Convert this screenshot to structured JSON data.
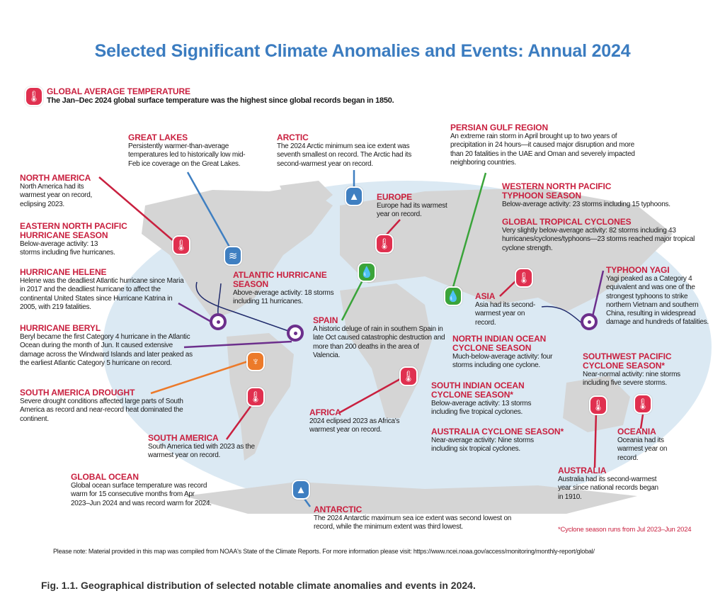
{
  "title": "Selected Significant Climate Anomalies and Events: Annual 2024",
  "colors": {
    "title": "#3b7cc0",
    "heading": "#c9203f",
    "temperature": "#e0304f",
    "ice": "#3f7fc1",
    "precipitation": "#3aa43a",
    "drought": "#ec7a2a",
    "cyclone": "#6c2f8c",
    "ocean": "#dbe9f3",
    "land": "#d5d5d5"
  },
  "icons": [
    "thermometer-icon",
    "ice-icon",
    "rain-icon",
    "cyclone-icon",
    "drought-icon"
  ],
  "events": {
    "global_temp": {
      "h": "GLOBAL AVERAGE TEMPERATURE",
      "t": "The Jan–Dec 2024 global surface temperature was the highest since global records began in 1850."
    },
    "great_lakes": {
      "h": "GREAT LAKES",
      "t": "Persistently warmer-than-average temperatures led to historically low mid-Feb ice coverage on the Great Lakes."
    },
    "arctic": {
      "h": "ARCTIC",
      "t": "The 2024 Arctic minimum sea ice extent was seventh smallest on record. The Arctic had its second-warmest year on record."
    },
    "persian": {
      "h": "PERSIAN GULF REGION",
      "t": "An extreme rain storm in April brought up to two years of precipitation in 24 hours—it caused major disruption and more than 20 fatalities in the UAE and Oman and severely impacted neighboring countries."
    },
    "north_america": {
      "h": "NORTH AMERICA",
      "t": "North America had its warmest year on record, eclipsing 2023."
    },
    "europe": {
      "h": "EUROPE",
      "t": "Europe had its warmest year on record."
    },
    "wnp": {
      "h": "WESTERN NORTH PACIFIC TYPHOON SEASON",
      "t": "Below-average activity: 23 storms including 15 typhoons."
    },
    "enp": {
      "h": "EASTERN NORTH PACIFIC HURRICANE SEASON",
      "t": "Below-average activity: 13 storms including five hurricanes."
    },
    "gtc": {
      "h": "GLOBAL TROPICAL CYCLONES",
      "t": "Very slightly below-average activity: 82 storms including 43 hurricanes/cyclones/typhoons—23 storms reached major tropical cyclone strength."
    },
    "helene": {
      "h": "HURRICANE HELENE",
      "t": "Helene was the deadliest Atlantic hurricane since Maria in 2017 and the deadliest hurricane to affect the continental United States since Hurricane Katrina in 2005, with 219 fatalities."
    },
    "atlantic": {
      "h": "ATLANTIC HURRICANE SEASON",
      "t": "Above-average activity: 18 storms including 11 hurricanes."
    },
    "yagi": {
      "h": "TYPHOON YAGI",
      "t": "Yagi peaked as a Category 4 equivalent and was one of the strongest typhoons to strike northern Vietnam and southern China, resulting in widespread damage and hundreds of fatalities."
    },
    "asia": {
      "h": "ASIA",
      "t": "Asia had its second-warmest year on record."
    },
    "spain": {
      "h": "SPAIN",
      "t": "A historic deluge of rain in southern Spain in late Oct caused catastrophic destruction and more than 200 deaths in the area of Valencia."
    },
    "beryl": {
      "h": "HURRICANE BERYL",
      "t": "Beryl became the first Category 4 hurricane in the Atlantic Ocean during the month of Jun. It caused extensive damage across the Windward Islands and later peaked as the earliest Atlantic Category 5 hurricane on record."
    },
    "nio": {
      "h": "NORTH INDIAN OCEAN CYCLONE SEASON",
      "t": "Much-below-average activity: four storms including one cyclone."
    },
    "swp": {
      "h": "SOUTHWEST PACIFIC CYCLONE SEASON*",
      "t": "Near-normal activity: nine storms including five severe storms."
    },
    "sa_drought": {
      "h": "SOUTH AMERICA DROUGHT",
      "t": "Severe drought conditions affected large parts of South America as record and near-record heat dominated the continent."
    },
    "sio": {
      "h": "SOUTH INDIAN OCEAN CYCLONE SEASON*",
      "t": "Below-average activity: 13 storms including five tropical cyclones."
    },
    "africa": {
      "h": "AFRICA",
      "t": "2024 eclipsed 2023 as Africa's warmest year on record."
    },
    "south_america": {
      "h": "SOUTH AMERICA",
      "t": "South America tied with 2023 as the warmest year on record."
    },
    "aus_cyc": {
      "h": "AUSTRALIA CYCLONE SEASON*",
      "t": "Near-average activity: Nine storms including six tropical cyclones."
    },
    "oceania": {
      "h": "OCEANIA",
      "t": "Oceania had its warmest year on record."
    },
    "australia": {
      "h": "AUSTRALIA",
      "t": "Australia had its second-warmest year since national records began in 1910."
    },
    "ocean": {
      "h": "GLOBAL OCEAN",
      "t": "Global ocean surface temperature was record warm for 15 consecutive months from Apr 2023–Jun 2024 and was record warm for 2024."
    },
    "antarctic": {
      "h": "ANTARCTIC",
      "t": "The 2024 Antarctic maximum sea ice extent was second lowest on record, while the minimum extent was third lowest."
    }
  },
  "footnote": "*Cyclone season runs from Jul 2023–Jun 2024",
  "note": "Please note: Material provided in this map was compiled from NOAA's State of the Climate Reports. For more information please visit: https://www.ncei.noaa.gov/access/monitoring/monthly-report/global/",
  "caption": "Fig. 1.1. Geographical distribution of selected notable climate anomalies and events in 2024."
}
